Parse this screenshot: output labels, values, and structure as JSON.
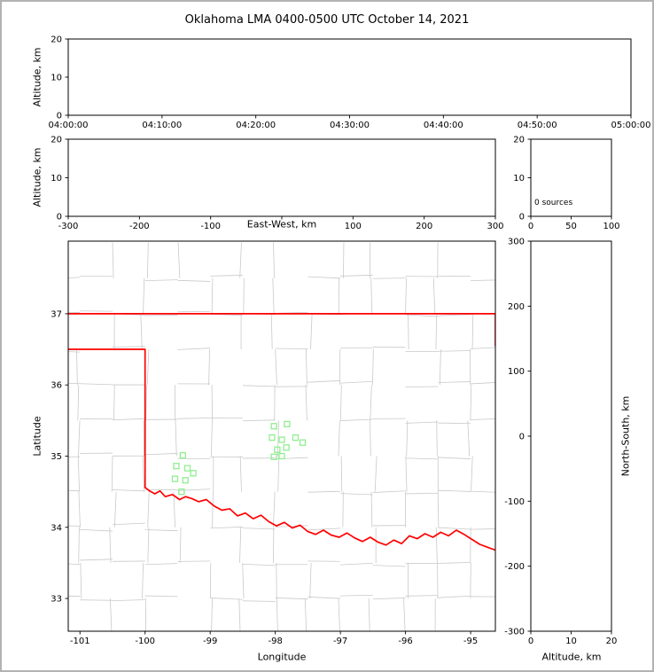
{
  "title": "Oklahoma LMA 0400-0500 UTC October 14, 2021",
  "colors": {
    "background": "#ffffff",
    "page_border": "#b3b3b3",
    "frame": "#000000",
    "county_lines": "#c9c9c9",
    "state_border": "#ff0000",
    "station": "#90ee90"
  },
  "chart_data": [
    {
      "id": "time_height_panel",
      "type": "scatter",
      "xlabel": "",
      "ylabel": "Altitude, km",
      "xlim": [
        0,
        3600
      ],
      "xticks": [
        0,
        600,
        1200,
        1800,
        2400,
        3000,
        3600
      ],
      "xtick_labels": [
        "04:00:00",
        "04:10:00",
        "04:20:00",
        "04:30:00",
        "04:40:00",
        "04:50:00",
        "05:00:00"
      ],
      "ylim": [
        0,
        20
      ],
      "yticks": [
        0,
        10,
        20
      ],
      "points": []
    },
    {
      "id": "east_west_height_panel",
      "type": "scatter",
      "xlabel": "East-West, km",
      "ylabel": "Altitude, km",
      "xlim": [
        -300,
        300
      ],
      "xticks": [
        -300,
        -200,
        -100,
        0,
        100,
        200,
        300
      ],
      "omit_zero_tick_label": true,
      "ylim": [
        0,
        20
      ],
      "yticks": [
        0,
        10,
        20
      ],
      "points": []
    },
    {
      "id": "altitude_histogram_panel",
      "type": "bar",
      "annotation": "0 sources",
      "xlabel": "",
      "ylabel": "",
      "xlim": [
        0,
        100
      ],
      "xticks": [
        0,
        50,
        100
      ],
      "ylim": [
        0,
        20
      ],
      "yticks": [
        0,
        10,
        20
      ],
      "values": []
    },
    {
      "id": "plan_view_map_panel",
      "type": "scatter",
      "xlabel": "Longitude",
      "ylabel": "Latitude",
      "xlim": [
        -101.18,
        -94.62
      ],
      "xticks": [
        -101,
        -100,
        -99,
        -98,
        -97,
        -96,
        -95
      ],
      "ylim": [
        32.54,
        38.02
      ],
      "yticks": [
        33,
        34,
        35,
        36,
        37
      ],
      "series": [
        {
          "name": "LMA stations",
          "marker": "open-square",
          "color": "#90ee90",
          "points": [
            [
              -99.42,
              35.01
            ],
            [
              -99.52,
              34.86
            ],
            [
              -99.35,
              34.83
            ],
            [
              -99.26,
              34.76
            ],
            [
              -99.54,
              34.68
            ],
            [
              -99.38,
              34.66
            ],
            [
              -99.44,
              34.5
            ],
            [
              -98.02,
              35.42
            ],
            [
              -97.82,
              35.45
            ],
            [
              -98.05,
              35.26
            ],
            [
              -97.9,
              35.23
            ],
            [
              -97.69,
              35.26
            ],
            [
              -97.58,
              35.19
            ],
            [
              -97.97,
              35.09
            ],
            [
              -97.83,
              35.12
            ],
            [
              -98.02,
              34.99
            ],
            [
              -97.9,
              35.0
            ]
          ]
        },
        {
          "name": "VHF sources",
          "marker": "dot",
          "points": []
        }
      ]
    },
    {
      "id": "north_south_height_panel",
      "type": "scatter",
      "xlabel": "Altitude, km",
      "ylabel": "North-South, km",
      "xlim": [
        0,
        20
      ],
      "xticks": [
        0,
        10,
        20
      ],
      "ylim": [
        -300,
        300
      ],
      "yticks": [
        -300,
        -200,
        -100,
        0,
        100,
        200,
        300
      ],
      "points": []
    }
  ],
  "map": {
    "county_grid": {
      "color": "#c9c9c9",
      "cell_deg": 0.5,
      "seed": 13
    },
    "state_border_color": "#ff0000",
    "state_border": [
      [
        [
          -101.18,
          37.0
        ],
        [
          -94.62,
          37.0
        ]
      ],
      [
        [
          -101.18,
          36.5
        ],
        [
          -100.0,
          36.5
        ],
        [
          -100.0,
          34.56
        ]
      ],
      [
        [
          -94.62,
          37.0
        ],
        [
          -94.62,
          36.55
        ]
      ],
      [
        [
          -100.0,
          34.56
        ],
        [
          -99.93,
          34.51
        ],
        [
          -99.85,
          34.47
        ],
        [
          -99.77,
          34.51
        ],
        [
          -99.69,
          34.43
        ],
        [
          -99.58,
          34.46
        ],
        [
          -99.47,
          34.39
        ],
        [
          -99.38,
          34.43
        ],
        [
          -99.27,
          34.4
        ],
        [
          -99.18,
          34.36
        ],
        [
          -99.06,
          34.39
        ],
        [
          -98.94,
          34.3
        ],
        [
          -98.82,
          34.24
        ],
        [
          -98.7,
          34.26
        ],
        [
          -98.58,
          34.16
        ],
        [
          -98.46,
          34.2
        ],
        [
          -98.34,
          34.12
        ],
        [
          -98.22,
          34.17
        ],
        [
          -98.1,
          34.08
        ],
        [
          -97.98,
          34.02
        ],
        [
          -97.86,
          34.07
        ],
        [
          -97.74,
          33.99
        ],
        [
          -97.62,
          34.03
        ],
        [
          -97.5,
          33.94
        ],
        [
          -97.38,
          33.9
        ],
        [
          -97.26,
          33.96
        ],
        [
          -97.14,
          33.89
        ],
        [
          -97.02,
          33.86
        ],
        [
          -96.9,
          33.92
        ],
        [
          -96.78,
          33.85
        ],
        [
          -96.66,
          33.8
        ],
        [
          -96.54,
          33.86
        ],
        [
          -96.42,
          33.79
        ],
        [
          -96.3,
          33.75
        ],
        [
          -96.18,
          33.82
        ],
        [
          -96.06,
          33.77
        ],
        [
          -95.94,
          33.88
        ],
        [
          -95.82,
          33.84
        ],
        [
          -95.7,
          33.91
        ],
        [
          -95.58,
          33.86
        ],
        [
          -95.46,
          33.93
        ],
        [
          -95.34,
          33.88
        ],
        [
          -95.22,
          33.96
        ],
        [
          -95.1,
          33.9
        ],
        [
          -94.98,
          33.83
        ],
        [
          -94.86,
          33.76
        ],
        [
          -94.74,
          33.72
        ],
        [
          -94.62,
          33.68
        ]
      ]
    ]
  }
}
